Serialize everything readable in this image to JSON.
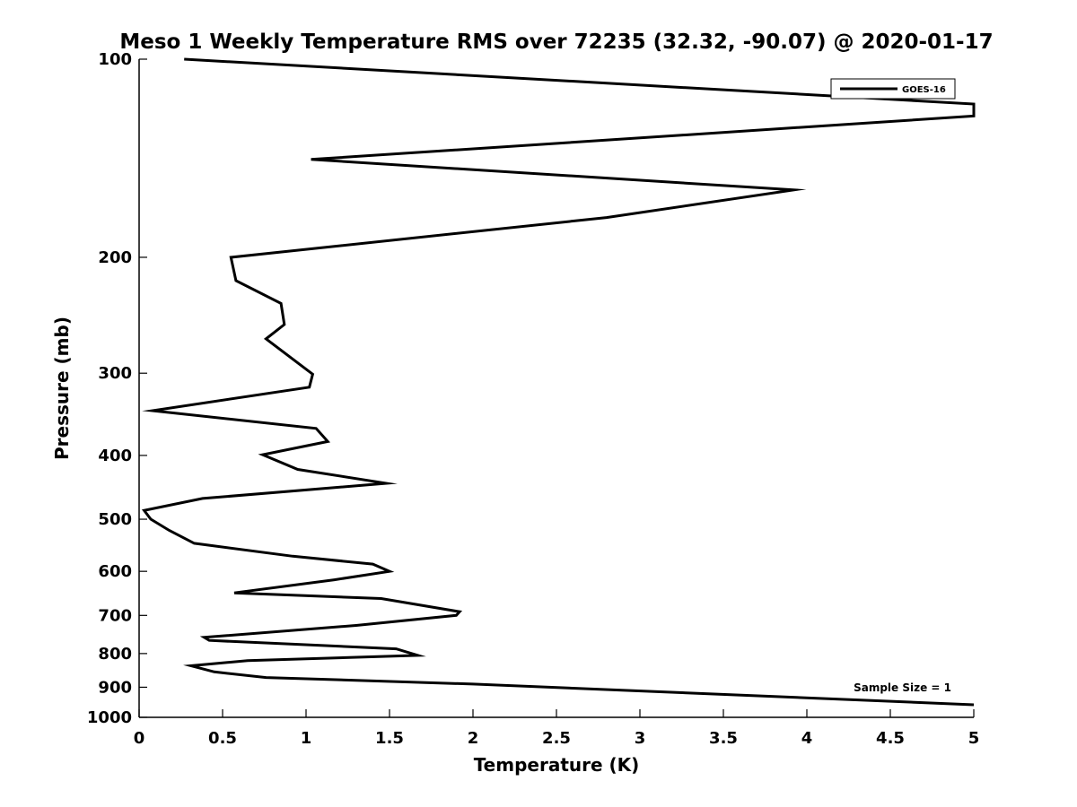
{
  "chart_data": {
    "type": "line",
    "title": "Meso 1 Weekly Temperature RMS over 72235 (32.32, -90.07) @ 2020-01-17",
    "xlabel": "Temperature (K)",
    "ylabel": "Pressure (mb)",
    "xlim": [
      0,
      5
    ],
    "ylim": [
      100,
      1000
    ],
    "yscale": "log",
    "y_reversed": true,
    "x_ticks": [
      0,
      0.5,
      1,
      1.5,
      2,
      2.5,
      3,
      3.5,
      4,
      4.5,
      5
    ],
    "x_tick_labels": [
      "0",
      "0.5",
      "1",
      "1.5",
      "2",
      "2.5",
      "3",
      "3.5",
      "4",
      "4.5",
      "5"
    ],
    "y_ticks": [
      100,
      200,
      300,
      400,
      500,
      600,
      700,
      800,
      900,
      1000
    ],
    "y_tick_labels": [
      "100",
      "200",
      "300",
      "400",
      "500",
      "600",
      "700",
      "800",
      "900",
      "1000"
    ],
    "grid": false,
    "legend_position": "top-right",
    "annotation": "Sample Size = 1",
    "series": [
      {
        "name": "GOES-16",
        "color": "#000000",
        "points": [
          [
            0.27,
            100
          ],
          [
            5.0,
            117
          ],
          [
            5.0,
            122
          ],
          [
            1.03,
            142
          ],
          [
            3.92,
            158
          ],
          [
            2.8,
            174
          ],
          [
            0.55,
            200
          ],
          [
            0.58,
            217
          ],
          [
            0.85,
            235
          ],
          [
            0.87,
            253
          ],
          [
            0.76,
            266
          ],
          [
            1.04,
            301
          ],
          [
            1.02,
            315
          ],
          [
            0.08,
            342
          ],
          [
            1.06,
            364
          ],
          [
            1.13,
            381
          ],
          [
            0.74,
            399
          ],
          [
            0.95,
            420
          ],
          [
            1.48,
            441
          ],
          [
            0.38,
            465
          ],
          [
            0.03,
            485
          ],
          [
            0.07,
            500
          ],
          [
            0.18,
            520
          ],
          [
            0.33,
            544
          ],
          [
            0.92,
            569
          ],
          [
            1.4,
            585
          ],
          [
            1.5,
            600
          ],
          [
            1.17,
            618
          ],
          [
            0.57,
            647
          ],
          [
            1.45,
            660
          ],
          [
            1.92,
            691
          ],
          [
            1.9,
            700
          ],
          [
            1.3,
            725
          ],
          [
            0.39,
            756
          ],
          [
            0.42,
            764
          ],
          [
            1.54,
            787
          ],
          [
            1.67,
            805
          ],
          [
            0.65,
            820
          ],
          [
            0.31,
            835
          ],
          [
            0.45,
            853
          ],
          [
            0.76,
            870
          ],
          [
            2.0,
            890
          ],
          [
            5.0,
            957
          ]
        ]
      }
    ]
  }
}
